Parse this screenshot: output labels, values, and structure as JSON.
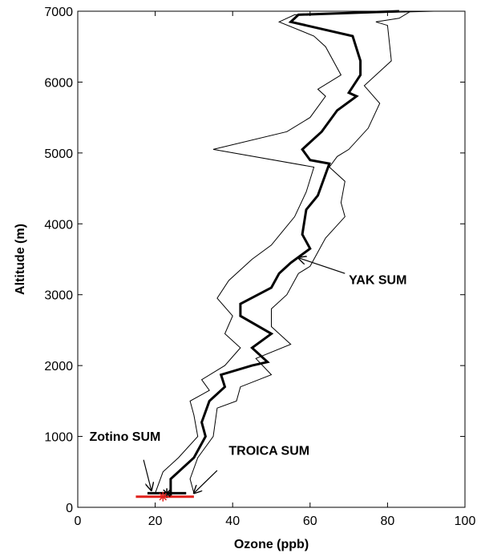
{
  "chart_data": {
    "type": "line",
    "title": "",
    "xlabel": "Ozone (ppb)",
    "ylabel": "Altitude (m)",
    "xlim": [
      0,
      100
    ],
    "ylim": [
      0,
      7000
    ],
    "xticks": [
      0,
      20,
      40,
      60,
      80,
      100
    ],
    "yticks": [
      0,
      1000,
      2000,
      3000,
      4000,
      5000,
      6000,
      7000
    ],
    "grid": false,
    "series": [
      {
        "key": "mean",
        "color": "#000000",
        "points": [
          [
            24,
            150
          ],
          [
            24,
            400
          ],
          [
            30,
            700
          ],
          [
            33,
            1000
          ],
          [
            32,
            1200
          ],
          [
            34,
            1500
          ],
          [
            38,
            1700
          ],
          [
            37,
            1870
          ],
          [
            45,
            2000
          ],
          [
            49,
            2050
          ],
          [
            45,
            2250
          ],
          [
            50,
            2450
          ],
          [
            42,
            2700
          ],
          [
            42,
            2870
          ],
          [
            50,
            3100
          ],
          [
            52,
            3300
          ],
          [
            55,
            3450
          ],
          [
            60,
            3650
          ],
          [
            58,
            3850
          ],
          [
            59,
            4200
          ],
          [
            62,
            4400
          ],
          [
            64,
            4700
          ],
          [
            65,
            4850
          ],
          [
            60,
            4900
          ],
          [
            58,
            5050
          ],
          [
            63,
            5300
          ],
          [
            67,
            5600
          ],
          [
            72,
            5800
          ],
          [
            70,
            5850
          ],
          [
            73,
            6100
          ],
          [
            73,
            6300
          ],
          [
            71,
            6650
          ],
          [
            55,
            6850
          ],
          [
            57,
            6950
          ],
          [
            83,
            7000
          ]
        ]
      },
      {
        "key": "lower",
        "color": "#000000",
        "points": [
          [
            20,
            200
          ],
          [
            22,
            500
          ],
          [
            26,
            700
          ],
          [
            31,
            1000
          ],
          [
            30,
            1300
          ],
          [
            29,
            1500
          ],
          [
            34,
            1650
          ],
          [
            32,
            1800
          ],
          [
            38,
            2000
          ],
          [
            42,
            2250
          ],
          [
            38,
            2450
          ],
          [
            40,
            2700
          ],
          [
            36,
            2950
          ],
          [
            39,
            3200
          ],
          [
            45,
            3500
          ],
          [
            50,
            3700
          ],
          [
            53,
            3900
          ],
          [
            56,
            4100
          ],
          [
            59,
            4450
          ],
          [
            61,
            4800
          ],
          [
            35,
            5050
          ],
          [
            54,
            5300
          ],
          [
            60,
            5500
          ],
          [
            64,
            5800
          ],
          [
            62,
            5900
          ],
          [
            68,
            6100
          ],
          [
            64,
            6500
          ],
          [
            61,
            6650
          ],
          [
            52,
            6850
          ],
          [
            56,
            6950
          ],
          [
            92,
            7000
          ]
        ]
      },
      {
        "key": "upper",
        "color": "#000000",
        "points": [
          [
            30,
            200
          ],
          [
            29,
            400
          ],
          [
            31,
            700
          ],
          [
            35,
            1000
          ],
          [
            36,
            1400
          ],
          [
            41,
            1500
          ],
          [
            42,
            1700
          ],
          [
            50,
            1870
          ],
          [
            46,
            2100
          ],
          [
            55,
            2300
          ],
          [
            50,
            2550
          ],
          [
            50,
            2800
          ],
          [
            54,
            3000
          ],
          [
            57,
            3300
          ],
          [
            60,
            3400
          ],
          [
            61,
            3500
          ],
          [
            64,
            3800
          ],
          [
            69,
            4100
          ],
          [
            68,
            4300
          ],
          [
            69,
            4600
          ],
          [
            65,
            4800
          ],
          [
            67,
            4950
          ],
          [
            70,
            5050
          ],
          [
            75,
            5350
          ],
          [
            78,
            5700
          ],
          [
            74,
            5950
          ],
          [
            81,
            6300
          ],
          [
            80,
            6800
          ],
          [
            77,
            6850
          ],
          [
            83,
            6900
          ],
          [
            86,
            7000
          ]
        ]
      }
    ],
    "bars": [
      {
        "key": "zotino",
        "x0": 18,
        "x1": 28,
        "y": 200,
        "color": "#000000"
      },
      {
        "key": "troica",
        "x0": 15,
        "x1": 30,
        "y": 150,
        "color": "#e0201b"
      }
    ],
    "markers": [
      {
        "key": "zotino",
        "x": 23,
        "y": 200,
        "symbol": "*",
        "color": "#000000"
      },
      {
        "key": "troica",
        "x": 22,
        "y": 150,
        "symbol": "*",
        "color": "#e0201b"
      }
    ],
    "annotations": [
      {
        "key": "yak",
        "text": "YAK SUM",
        "text_at": [
          70,
          3150
        ],
        "arrow_from": [
          69,
          3300
        ],
        "arrow_to": [
          57,
          3520
        ]
      },
      {
        "key": "zotino",
        "text": "Zotino SUM",
        "text_at": [
          3,
          940
        ],
        "arrow_from": [
          17,
          670
        ],
        "arrow_to": [
          19,
          240
        ]
      },
      {
        "key": "troica",
        "text": "TROICA SUM",
        "text_at": [
          39,
          740
        ],
        "arrow_from": [
          36,
          520
        ],
        "arrow_to": [
          30,
          200
        ]
      }
    ]
  }
}
